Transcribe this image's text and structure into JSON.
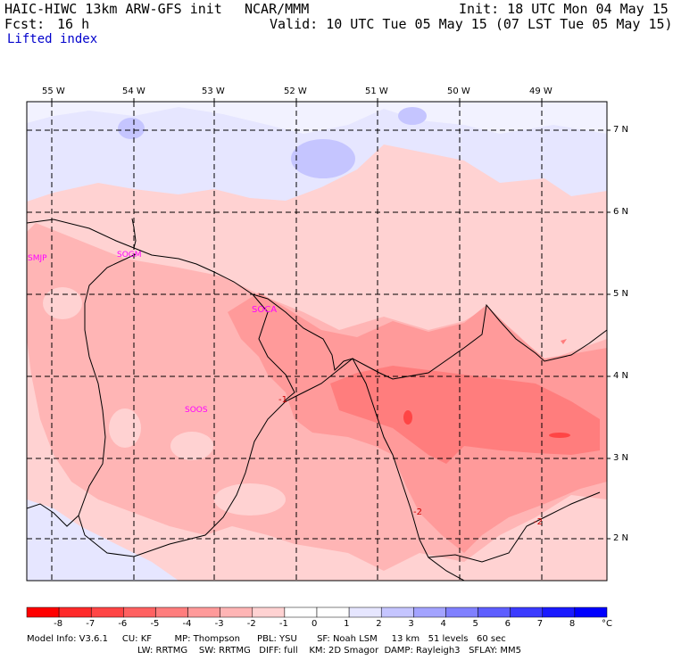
{
  "header": {
    "model": "HAIC-HIWC 13km ARW-GFS init",
    "org": "NCAR/MMM",
    "init": "Init: 18 UTC Mon 04 May 15",
    "fcst_label": "Fcst:",
    "fcst_value": "16 h",
    "valid": "Valid: 10 UTC Tue 05 May 15 (07 LST Tue 05 May 15)",
    "field": "Lifted index"
  },
  "map": {
    "lon_labels": [
      "55 W",
      "54 W",
      "53 W",
      "52 W",
      "51 W",
      "50 W",
      "49 W"
    ],
    "lat_labels": [
      "7 N",
      "6 N",
      "5 N",
      "4 N",
      "3 N",
      "2 N"
    ],
    "stations": [
      "SMJP",
      "SOGM",
      "SOCA",
      "SOOS"
    ],
    "contour_labels": [
      "-1",
      "-2",
      "-2"
    ]
  },
  "colorbar": {
    "ticks": [
      "-8",
      "-7",
      "-6",
      "-5",
      "-4",
      "-3",
      "-2",
      "-1",
      "0",
      "1",
      "2",
      "3",
      "4",
      "5",
      "6",
      "7",
      "8"
    ],
    "unit": "°C",
    "colors": [
      "#ff0000",
      "#ff2a2a",
      "#ff4545",
      "#ff6161",
      "#ff7d7d",
      "#ff9a9a",
      "#ffb5b5",
      "#ffd2d2",
      "#ffffff",
      "#e6e6ff",
      "#c5c5ff",
      "#a3a3ff",
      "#8080ff",
      "#5e5eff",
      "#3b3bff",
      "#1a1aff",
      "#0000ff"
    ]
  },
  "footer": {
    "line1": "Model Info: V3.6.1     CU: KF        MP: Thompson      PBL: YSU       SF: Noah LSM     13 km   51 levels   60 sec",
    "line2": "LW: RRTMG    SW: RRTMG   DIFF: full    KM: 2D Smagor  DAMP: Rayleigh3   SFLAY: MM5"
  }
}
